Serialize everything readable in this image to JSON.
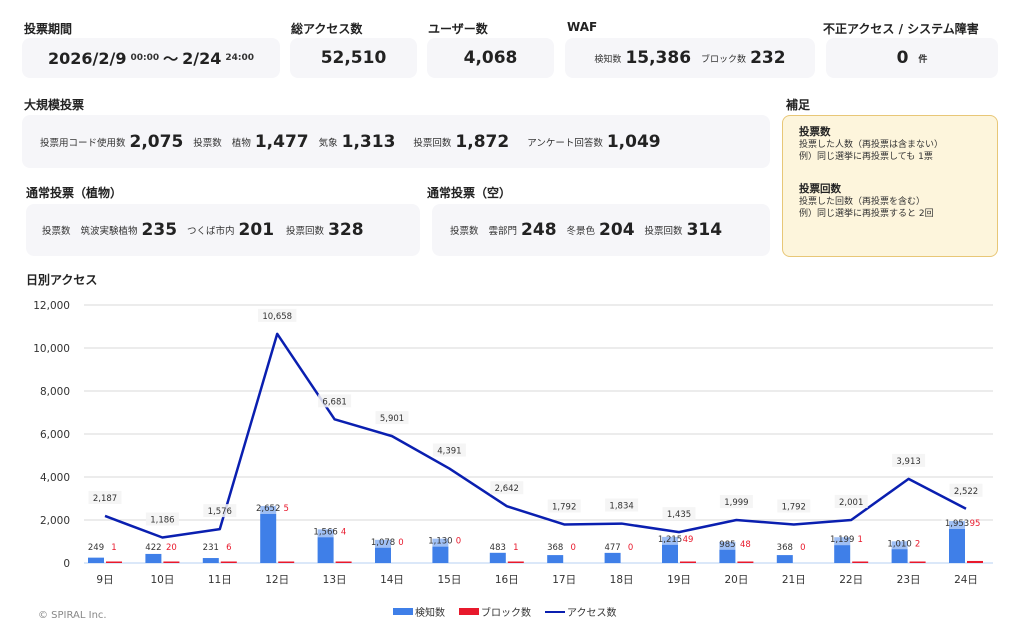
{
  "summary": {
    "period": {
      "label": "投票期間",
      "start_date": "2026/2/9",
      "start_time": "00:00",
      "sep": "～",
      "end_date": "2/24",
      "end_time": "24:00"
    },
    "total_access": {
      "label": "総アクセス数",
      "value": "52,510"
    },
    "users": {
      "label": "ユーザー数",
      "value": "4,068"
    },
    "waf": {
      "label": "WAF",
      "detect_label": "検知数",
      "detect_value": "15,386",
      "block_label": "ブロック数",
      "block_value": "232"
    },
    "incidents": {
      "label": "不正アクセス / システム障害",
      "value": "0",
      "unit": "件"
    }
  },
  "large_vote": {
    "label": "大規模投票",
    "code_label": "投票用コード使用数",
    "code_value": "2,075",
    "votes_label": "投票数",
    "plant_label": "植物",
    "plant_value": "1,477",
    "weather_label": "気象",
    "weather_value": "1,313",
    "count_label": "投票回数",
    "count_value": "1,872",
    "survey_label": "アンケート回答数",
    "survey_value": "1,049"
  },
  "normal_plant": {
    "label": "通常投票（植物）",
    "votes_label": "投票数",
    "a_label": "筑波実験植物",
    "a_value": "235",
    "b_label": "つくば市内",
    "b_value": "201",
    "count_label": "投票回数",
    "count_value": "328"
  },
  "normal_sky": {
    "label": "通常投票（空）",
    "votes_label": "投票数",
    "a_label": "雲部門",
    "a_value": "248",
    "b_label": "冬景色",
    "b_value": "204",
    "count_label": "投票回数",
    "count_value": "314"
  },
  "notes": {
    "label": "補足",
    "items": [
      {
        "title": "投票数",
        "line1": "投票した人数（再投票は含まない）",
        "line2": "例）同じ選挙に再投票しても 1票"
      },
      {
        "title": "投票回数",
        "line1": "投票した回数（再投票を含む）",
        "line2": "例）同じ選挙に再投票すると 2回"
      }
    ]
  },
  "daily": {
    "label": "日別アクセス"
  },
  "legend": {
    "detect": "検知数",
    "block": "ブロック数",
    "access": "アクセス数"
  },
  "footer": {
    "copyright": "© SPIRAL Inc."
  },
  "colors": {
    "detect": "#3f7fe8",
    "detect_light": "#9dbcf0",
    "block": "#e8192c",
    "access": "#0a1fb0",
    "grid": "#d9d9d9",
    "baseline": "#cfe0f7"
  },
  "chart_data": {
    "type": "bar",
    "title": "日別アクセス",
    "categories": [
      "9日",
      "10日",
      "11日",
      "12日",
      "13日",
      "14日",
      "15日",
      "16日",
      "17日",
      "18日",
      "19日",
      "20日",
      "21日",
      "22日",
      "23日",
      "24日"
    ],
    "series": [
      {
        "name": "検知数",
        "type": "bar",
        "values": [
          249,
          422,
          231,
          2652,
          1566,
          1078,
          1130,
          483,
          368,
          477,
          1215,
          985,
          368,
          1199,
          1010,
          1953
        ]
      },
      {
        "name": "ブロック数",
        "type": "bar",
        "values": [
          1,
          20,
          6,
          5,
          4,
          0,
          0,
          1,
          0,
          0,
          49,
          48,
          0,
          1,
          2,
          95
        ]
      },
      {
        "name": "アクセス数",
        "type": "line",
        "values": [
          2187,
          1186,
          1576,
          10658,
          6681,
          5901,
          4391,
          2642,
          1792,
          1834,
          1435,
          1999,
          1792,
          2001,
          3913,
          2522
        ]
      }
    ],
    "yticks": [
      "0",
      "2,000",
      "4,000",
      "6,000",
      "8,000",
      "10,000",
      "12,000"
    ],
    "ylim": [
      0,
      12000
    ],
    "grid": true,
    "legend_position": "bottom"
  }
}
